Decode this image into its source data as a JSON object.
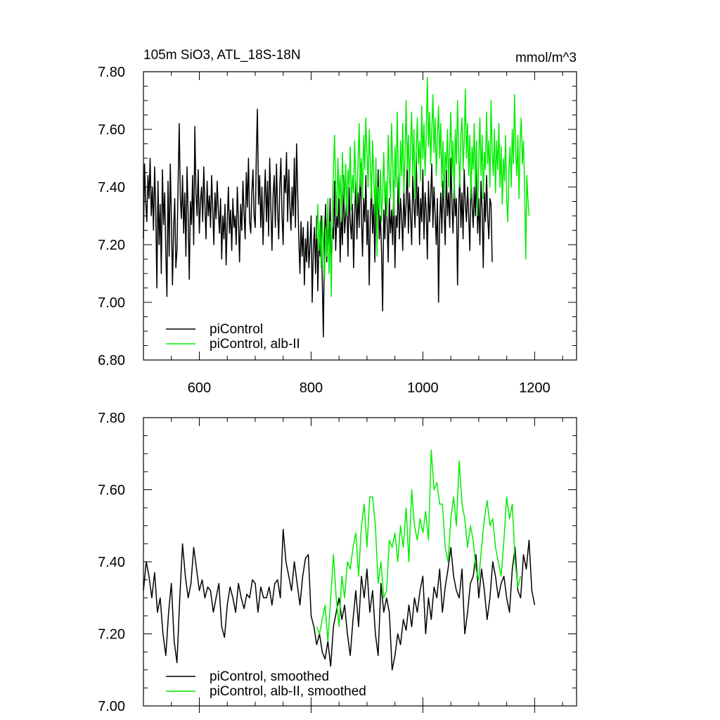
{
  "chart_data": [
    {
      "type": "line",
      "title": "105m SiO3, ATL_18S-18N",
      "units": "mmol/m^3",
      "xlabel": "",
      "ylabel": "",
      "xlim": [
        500,
        1275
      ],
      "ylim": [
        6.8,
        7.8
      ],
      "x_ticks": [
        "600",
        "800",
        "1000",
        "1200"
      ],
      "y_ticks": [
        "6.80",
        "7.00",
        "7.20",
        "7.40",
        "7.60",
        "7.80"
      ],
      "legend_position": "bottom-left",
      "grid": false,
      "series": [
        {
          "name": "piControl",
          "color": "#000000",
          "x_start": 500,
          "x_step": 2,
          "values": [
            7.22,
            7.48,
            7.35,
            7.28,
            7.44,
            7.36,
            7.5,
            7.3,
            7.4,
            7.25,
            7.47,
            7.32,
            7.05,
            7.42,
            7.2,
            7.34,
            7.1,
            7.46,
            7.27,
            7.38,
            7.18,
            7.02,
            7.42,
            7.16,
            7.48,
            7.3,
            7.06,
            7.25,
            7.36,
            7.12,
            7.18,
            7.41,
            7.62,
            7.36,
            7.29,
            7.44,
            7.24,
            7.38,
            7.16,
            7.47,
            7.3,
            7.08,
            7.35,
            7.27,
            7.44,
            7.2,
            7.61,
            7.38,
            7.3,
            7.46,
            7.24,
            7.35,
            7.4,
            7.28,
            7.47,
            7.34,
            7.22,
            7.42,
            7.3,
            7.37,
            7.26,
            7.44,
            7.32,
            7.2,
            7.38,
            7.29,
            7.42,
            7.32,
            7.24,
            7.36,
            7.15,
            7.3,
            7.22,
            7.34,
            7.13,
            7.28,
            7.4,
            7.24,
            7.32,
            7.18,
            7.36,
            7.26,
            7.3,
            7.2,
            7.4,
            7.28,
            7.14,
            7.34,
            7.25,
            7.42,
            7.31,
            7.22,
            7.45,
            7.33,
            7.5,
            7.28,
            7.24,
            7.38,
            7.46,
            7.3,
            7.26,
            7.52,
            7.67,
            7.34,
            7.44,
            7.26,
            7.4,
            7.2,
            7.35,
            7.46,
            7.28,
            7.42,
            7.23,
            7.5,
            7.33,
            7.18,
            7.37,
            7.44,
            7.26,
            7.48,
            7.32,
            7.22,
            7.4,
            7.5,
            7.3,
            7.2,
            7.44,
            7.38,
            7.52,
            7.28,
            7.46,
            7.34,
            7.25,
            7.4,
            7.3,
            7.5,
            7.26,
            7.55,
            7.38,
            7.22,
            7.1,
            7.28,
            7.16,
            7.26,
            7.06,
            7.22,
            7.14,
            7.28,
            7.12,
            7.2,
            7.3,
            7.0,
            7.18,
            7.26,
            7.1,
            7.3,
            7.04,
            7.22,
            7.16,
            7.3,
            7.08,
            6.88,
            7.24,
            7.34,
            7.14,
            7.28,
            7.2,
            7.36,
            7.1,
            7.26,
            7.22,
            7.42,
            7.18,
            7.3,
            7.26,
            7.38,
            7.14,
            7.32,
            7.2,
            7.44,
            7.24,
            7.3,
            7.36,
            7.16,
            7.4,
            7.28,
            7.22,
            7.34,
            7.12,
            7.3,
            7.42,
            7.22,
            7.38,
            7.26,
            7.48,
            7.3,
            7.16,
            7.36,
            7.28,
            7.44,
            7.2,
            7.32,
            7.06,
            7.3,
            7.4,
            7.24,
            7.34,
            7.14,
            7.38,
            7.26,
            7.46,
            7.22,
            7.3,
            7.18,
            6.97,
            7.32,
            7.22,
            7.4,
            7.28,
            7.14,
            7.36,
            7.24,
            7.32,
            7.2,
            7.42,
            7.12,
            7.3,
            7.26,
            7.44,
            7.22,
            7.36,
            7.3,
            7.18,
            7.4,
            7.26,
            7.34,
            7.48,
            7.24,
            7.38,
            7.3,
            7.2,
            7.44,
            7.34,
            7.26,
            7.52,
            7.3,
            7.4,
            7.2,
            7.36,
            7.28,
            7.46,
            7.22,
            7.38,
            7.32,
            7.15,
            7.42,
            7.28,
            7.36,
            7.48,
            7.26,
            7.4,
            7.3,
            7.2,
            7.36,
            7.0,
            7.28,
            7.38,
            7.24,
            7.42,
            7.32,
            7.2,
            7.46,
            7.3,
            7.38,
            7.26,
            7.5,
            7.34,
            7.24,
            7.42,
            7.3,
            7.36,
            7.06,
            7.32,
            7.44,
            7.26,
            7.38,
            7.22,
            7.46,
            7.34,
            7.28,
            7.4,
            7.3,
            7.18,
            7.44,
            7.34,
            7.26,
            7.4,
            7.3,
            7.46,
            7.24,
            7.36,
            7.2,
            7.42,
            7.32,
            7.12,
            7.38,
            7.28,
            7.44,
            7.3,
            7.22,
            7.36,
            7.34,
            7.14
          ]
        },
        {
          "name": "piControl, alb-II",
          "color": "#00ee00",
          "x_start": 810,
          "x_step": 2,
          "values": [
            7.22,
            7.34,
            7.18,
            7.28,
            7.12,
            7.3,
            7.2,
            7.08,
            7.26,
            7.16,
            7.36,
            7.1,
            7.28,
            7.02,
            7.32,
            7.46,
            7.58,
            7.4,
            7.3,
            7.5,
            7.36,
            7.44,
            7.28,
            7.52,
            7.38,
            7.34,
            7.48,
            7.3,
            7.46,
            7.4,
            7.54,
            7.32,
            7.44,
            7.38,
            7.56,
            7.42,
            7.34,
            7.48,
            7.62,
            7.4,
            7.5,
            7.36,
            7.58,
            7.46,
            7.64,
            7.52,
            7.4,
            7.6,
            7.48,
            7.36,
            7.56,
            7.44,
            7.3,
            7.5,
            7.16,
            7.4,
            7.32,
            7.46,
            7.28,
            7.38,
            7.52,
            7.34,
            7.42,
            7.3,
            7.58,
            7.44,
            7.36,
            7.62,
            7.48,
            7.3,
            7.54,
            7.4,
            7.66,
            7.46,
            7.34,
            7.56,
            7.44,
            7.62,
            7.38,
            7.5,
            7.7,
            7.46,
            7.58,
            7.4,
            7.54,
            7.66,
            7.44,
            7.6,
            7.36,
            7.52,
            7.64,
            7.48,
            7.56,
            7.42,
            7.68,
            7.5,
            7.62,
            7.44,
            7.58,
            7.78,
            7.54,
            7.66,
            7.48,
            7.6,
            7.72,
            7.52,
            7.64,
            7.44,
            7.58,
            7.68,
            7.5,
            7.62,
            7.4,
            7.56,
            7.36,
            7.52,
            7.46,
            7.6,
            7.4,
            7.54,
            7.66,
            7.44,
            7.56,
            7.36,
            7.6,
            7.48,
            7.7,
            7.52,
            7.4,
            7.58,
            7.64,
            7.46,
            7.56,
            7.74,
            7.5,
            7.62,
            7.44,
            7.58,
            7.36,
            7.54,
            7.46,
            7.62,
            7.4,
            7.56,
            7.3,
            7.5,
            7.64,
            7.44,
            7.58,
            7.36,
            7.52,
            7.46,
            7.66,
            7.48,
            7.56,
            7.4,
            7.7,
            7.52,
            7.44,
            7.6,
            7.38,
            7.56,
            7.46,
            7.62,
            7.4,
            7.54,
            7.34,
            7.5,
            7.42,
            7.58,
            7.36,
            7.28,
            7.46,
            7.54,
            7.4,
            7.6,
            7.48,
            7.72,
            7.52,
            7.44,
            7.58,
            7.36,
            7.56,
            7.64,
            7.48,
            7.56,
            7.4,
            7.15,
            7.44,
            7.36,
            7.3
          ]
        }
      ]
    },
    {
      "type": "line",
      "title": "",
      "xlabel": "",
      "ylabel": "",
      "xlim": [
        500,
        1275
      ],
      "ylim": [
        7.0,
        7.8
      ],
      "x_ticks": [],
      "y_ticks": [
        "7.00",
        "7.20",
        "7.40",
        "7.60",
        "7.80"
      ],
      "legend_position": "bottom-left",
      "grid": false,
      "series": [
        {
          "name": "piControl, smoothed",
          "color": "#000000",
          "x_start": 500,
          "x_step": 5,
          "values": [
            7.32,
            7.4,
            7.36,
            7.3,
            7.37,
            7.26,
            7.3,
            7.2,
            7.14,
            7.26,
            7.34,
            7.18,
            7.12,
            7.3,
            7.45,
            7.36,
            7.3,
            7.34,
            7.44,
            7.38,
            7.32,
            7.35,
            7.3,
            7.33,
            7.32,
            7.26,
            7.3,
            7.34,
            7.22,
            7.19,
            7.28,
            7.33,
            7.3,
            7.26,
            7.34,
            7.3,
            7.27,
            7.31,
            7.3,
            7.35,
            7.34,
            7.26,
            7.33,
            7.3,
            7.3,
            7.33,
            7.28,
            7.34,
            7.35,
            7.3,
            7.49,
            7.4,
            7.36,
            7.32,
            7.4,
            7.34,
            7.28,
            7.36,
            7.41,
            7.42,
            7.25,
            7.22,
            7.17,
            7.2,
            7.15,
            7.13,
            7.18,
            7.11,
            7.22,
            7.26,
            7.3,
            7.24,
            7.28,
            7.2,
            7.14,
            7.24,
            7.32,
            7.22,
            7.36,
            7.3,
            7.38,
            7.26,
            7.32,
            7.2,
            7.14,
            7.34,
            7.26,
            7.3,
            7.26,
            7.1,
            7.14,
            7.2,
            7.17,
            7.24,
            7.21,
            7.28,
            7.22,
            7.3,
            7.26,
            7.32,
            7.36,
            7.2,
            7.3,
            7.24,
            7.33,
            7.3,
            7.38,
            7.26,
            7.33,
            7.38,
            7.44,
            7.36,
            7.32,
            7.3,
            7.38,
            7.2,
            7.26,
            7.34,
            7.36,
            7.42,
            7.3,
            7.38,
            7.32,
            7.24,
            7.3,
            7.4,
            7.36,
            7.3,
            7.34,
            7.36,
            7.3,
            7.26,
            7.38,
            7.44,
            7.32,
            7.3,
            7.42,
            7.38,
            7.46,
            7.32,
            7.28
          ]
        },
        {
          "name": "piControl, alb-II, smoothed",
          "color": "#00ee00",
          "x_start": 810,
          "x_step": 5,
          "values": [
            7.22,
            7.2,
            7.24,
            7.28,
            7.18,
            7.3,
            7.42,
            7.3,
            7.22,
            7.36,
            7.3,
            7.4,
            7.38,
            7.44,
            7.48,
            7.36,
            7.5,
            7.56,
            7.44,
            7.58,
            7.58,
            7.5,
            7.34,
            7.4,
            7.3,
            7.32,
            7.46,
            7.44,
            7.48,
            7.4,
            7.5,
            7.44,
            7.55,
            7.4,
            7.6,
            7.5,
            7.46,
            7.52,
            7.48,
            7.54,
            7.46,
            7.71,
            7.6,
            7.62,
            7.56,
            7.56,
            7.44,
            7.4,
            7.52,
            7.58,
            7.5,
            7.68,
            7.56,
            7.52,
            7.44,
            7.5,
            7.46,
            7.38,
            7.35,
            7.44,
            7.52,
            7.57,
            7.5,
            7.52,
            7.44,
            7.4,
            7.36,
            7.46,
            7.58,
            7.52,
            7.56,
            7.4,
            7.33,
            7.36
          ]
        }
      ]
    }
  ]
}
